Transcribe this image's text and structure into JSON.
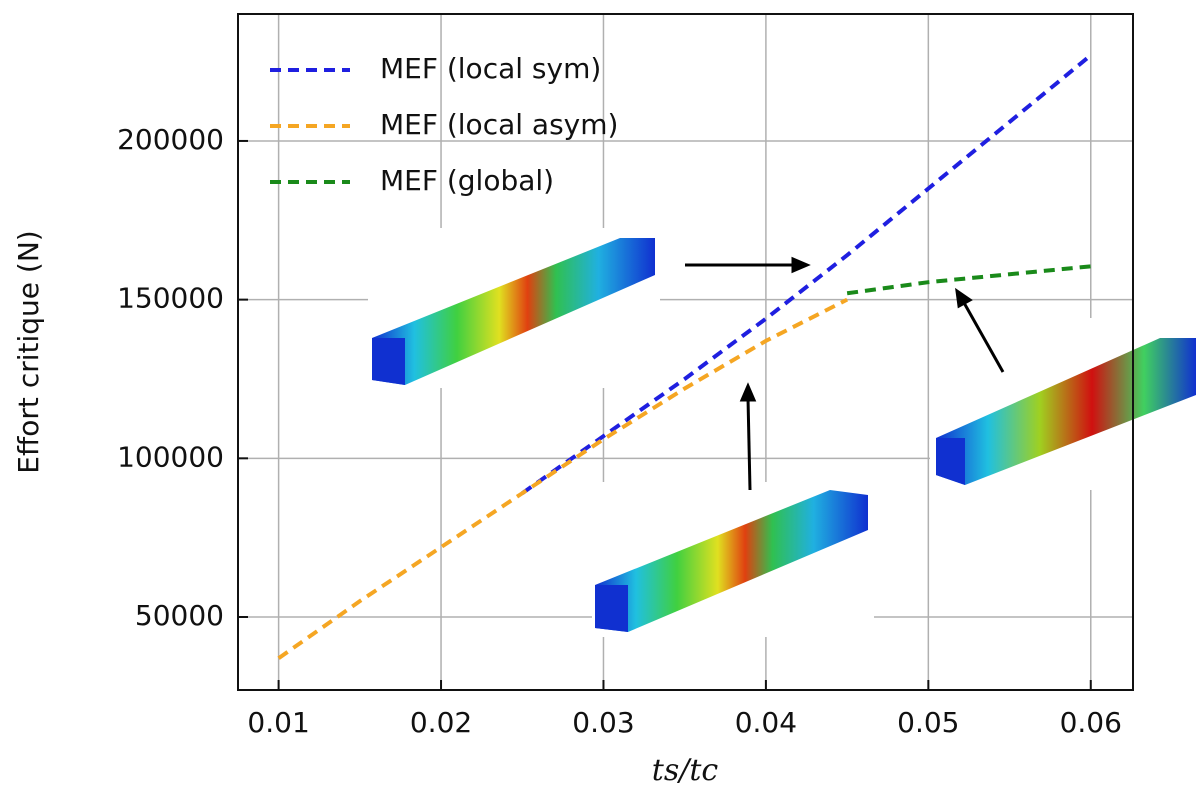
{
  "chart_data": {
    "type": "line",
    "xlabel": "ts/tc",
    "ylabel": "Effort critique (N)",
    "x": [
      0.01,
      0.015,
      0.02,
      0.025,
      0.03,
      0.035,
      0.04,
      0.045,
      0.05,
      0.055,
      0.06
    ],
    "series": [
      {
        "name": "MEF (local sym)",
        "color": "#1f1fe0",
        "values": [
          null,
          null,
          null,
          89000,
          107000,
          125000,
          144000,
          164000,
          185000,
          206000,
          227000
        ]
      },
      {
        "name": "MEF (local asym)",
        "color": "#f5a623",
        "values": [
          37000,
          55000,
          72000,
          89000,
          106000,
          122000,
          137000,
          150000,
          null,
          null,
          null
        ]
      },
      {
        "name": "MEF (global)",
        "color": "#1a8a1a",
        "values": [
          null,
          null,
          null,
          null,
          null,
          null,
          null,
          152000,
          155500,
          158000,
          160500
        ]
      }
    ],
    "xlim": [
      0.0075,
      0.0626
    ],
    "ylim": [
      27000,
      240000
    ],
    "xticks": [
      0.01,
      0.02,
      0.03,
      0.04,
      0.05,
      0.06
    ],
    "yticks": [
      50000,
      100000,
      150000,
      200000
    ],
    "grid": true,
    "legend": "upper left"
  }
}
